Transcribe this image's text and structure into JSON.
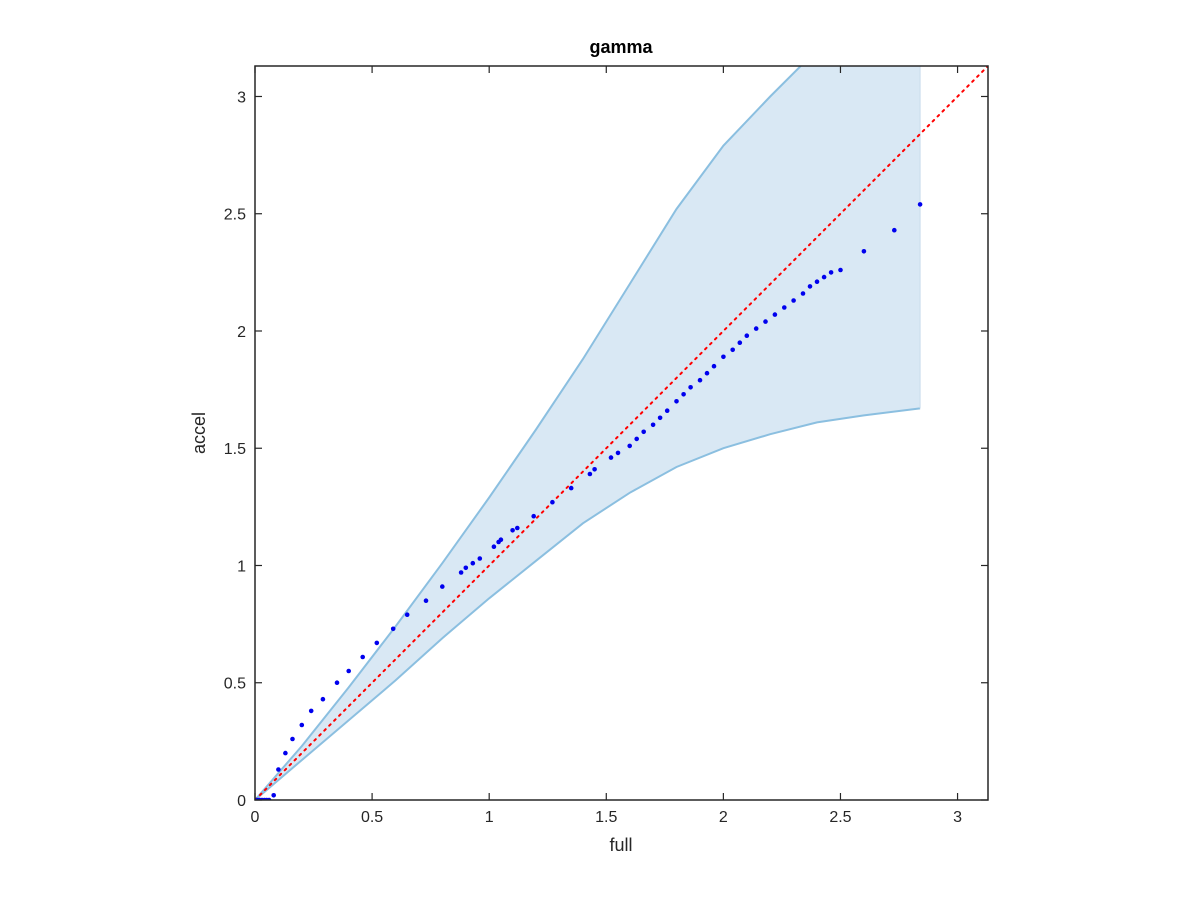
{
  "chart_data": {
    "type": "scatter",
    "title": "gamma",
    "xlabel": "full",
    "ylabel": "accel",
    "xlim": [
      0,
      3.13
    ],
    "ylim": [
      0,
      3.13
    ],
    "xticks": [
      0,
      0.5,
      1,
      1.5,
      2,
      2.5,
      3
    ],
    "yticks": [
      0,
      0.5,
      1,
      1.5,
      2,
      2.5,
      3
    ],
    "xtick_labels": [
      "0",
      "0.5",
      "1",
      "1.5",
      "2",
      "2.5",
      "3"
    ],
    "ytick_labels": [
      "0",
      "0.5",
      "1",
      "1.5",
      "2",
      "2.5",
      "3"
    ],
    "grid": false,
    "colors": {
      "points": "#0000ee",
      "reference_line": "#ff0000",
      "band_fill": "#d9e8f4",
      "band_edge": "#8bbfe0",
      "axes": "#262626"
    },
    "reference_line": {
      "style": "dotted",
      "from": [
        0,
        0
      ],
      "to": [
        3.13,
        3.13
      ]
    },
    "confidence_band": {
      "upper": [
        [
          0,
          0
        ],
        [
          0.2,
          0.23
        ],
        [
          0.4,
          0.48
        ],
        [
          0.6,
          0.74
        ],
        [
          0.8,
          1.01
        ],
        [
          1.0,
          1.29
        ],
        [
          1.2,
          1.58
        ],
        [
          1.4,
          1.88
        ],
        [
          1.6,
          2.2
        ],
        [
          1.8,
          2.52
        ],
        [
          2.0,
          2.79
        ],
        [
          2.2,
          3.0
        ],
        [
          2.33,
          3.13
        ],
        [
          2.84,
          3.13
        ]
      ],
      "lower": [
        [
          0,
          0
        ],
        [
          0.2,
          0.17
        ],
        [
          0.4,
          0.34
        ],
        [
          0.6,
          0.51
        ],
        [
          0.8,
          0.69
        ],
        [
          1.0,
          0.86
        ],
        [
          1.2,
          1.02
        ],
        [
          1.4,
          1.18
        ],
        [
          1.6,
          1.31
        ],
        [
          1.8,
          1.42
        ],
        [
          2.0,
          1.5
        ],
        [
          2.2,
          1.56
        ],
        [
          2.4,
          1.61
        ],
        [
          2.6,
          1.64
        ],
        [
          2.84,
          1.67
        ]
      ]
    },
    "series": [
      {
        "x": [
          0.0,
          0.01,
          0.02,
          0.03,
          0.04,
          0.05,
          0.06,
          0.08,
          0.1,
          0.13,
          0.16,
          0.2,
          0.24,
          0.29,
          0.35,
          0.4,
          0.46,
          0.52,
          0.59,
          0.65,
          0.73,
          0.8,
          0.88,
          0.9,
          0.93,
          0.96,
          1.02,
          1.04,
          1.05,
          1.1,
          1.12,
          1.19,
          1.27,
          1.35,
          1.43,
          1.45,
          1.52,
          1.55,
          1.6,
          1.63,
          1.66,
          1.7,
          1.73,
          1.76,
          1.8,
          1.83,
          1.86,
          1.9,
          1.93,
          1.96,
          2.0,
          2.04,
          2.07,
          2.1,
          2.14,
          2.18,
          2.22,
          2.26,
          2.3,
          2.34,
          2.37,
          2.4,
          2.43,
          2.46,
          2.5,
          2.6,
          2.73,
          2.84
        ],
        "y": [
          0.0,
          0.0,
          0.0,
          0.0,
          0.0,
          0.0,
          0.0,
          0.02,
          0.13,
          0.2,
          0.26,
          0.32,
          0.38,
          0.43,
          0.5,
          0.55,
          0.61,
          0.67,
          0.73,
          0.79,
          0.85,
          0.91,
          0.97,
          0.99,
          1.01,
          1.03,
          1.08,
          1.1,
          1.11,
          1.15,
          1.16,
          1.21,
          1.27,
          1.33,
          1.39,
          1.41,
          1.46,
          1.48,
          1.51,
          1.54,
          1.57,
          1.6,
          1.63,
          1.66,
          1.7,
          1.73,
          1.76,
          1.79,
          1.82,
          1.85,
          1.89,
          1.92,
          1.95,
          1.98,
          2.01,
          2.04,
          2.07,
          2.1,
          2.13,
          2.16,
          2.19,
          2.21,
          2.23,
          2.25,
          2.26,
          2.34,
          2.43,
          2.54
        ]
      }
    ]
  }
}
